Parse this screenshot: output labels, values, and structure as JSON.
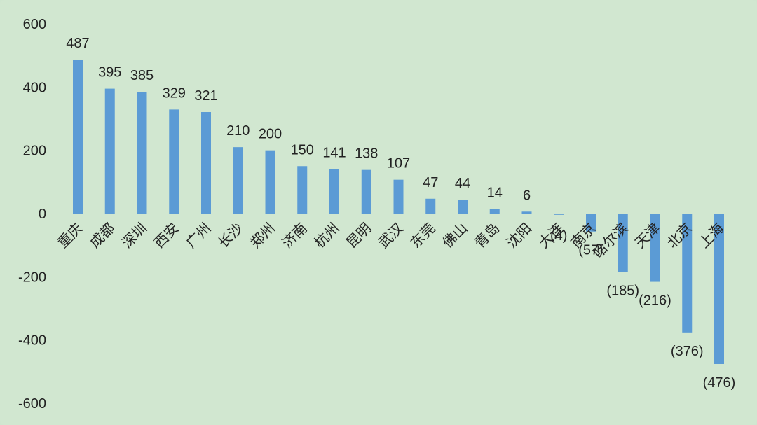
{
  "chart_data": {
    "type": "bar",
    "title": "",
    "xlabel": "",
    "ylabel": "",
    "ylim": [
      -600,
      600
    ],
    "yticks": [
      600,
      400,
      200,
      0,
      -200,
      -400,
      -600
    ],
    "grid": false,
    "legend": "none",
    "bar_color": "#5b9bd5",
    "background_color": "#d1e7d0",
    "categories": [
      "重庆",
      "成都",
      "深圳",
      "西安",
      "广州",
      "长沙",
      "郑州",
      "济南",
      "杭州",
      "昆明",
      "武汉",
      "东莞",
      "佛山",
      "青岛",
      "沈阳",
      "大连",
      "南京",
      "哈尔滨",
      "天津",
      "北京",
      "上海"
    ],
    "values": [
      487,
      395,
      385,
      329,
      321,
      210,
      200,
      150,
      141,
      138,
      107,
      47,
      44,
      14,
      6,
      -4,
      -57,
      -185,
      -216,
      -376,
      -476
    ],
    "data_labels": [
      "487",
      "395",
      "385",
      "329",
      "321",
      "210",
      "200",
      "150",
      "141",
      "138",
      "107",
      "47",
      "44",
      "14",
      "6",
      "(4)",
      "(57)",
      "(185)",
      "(216)",
      "(376)",
      "(476)"
    ]
  }
}
